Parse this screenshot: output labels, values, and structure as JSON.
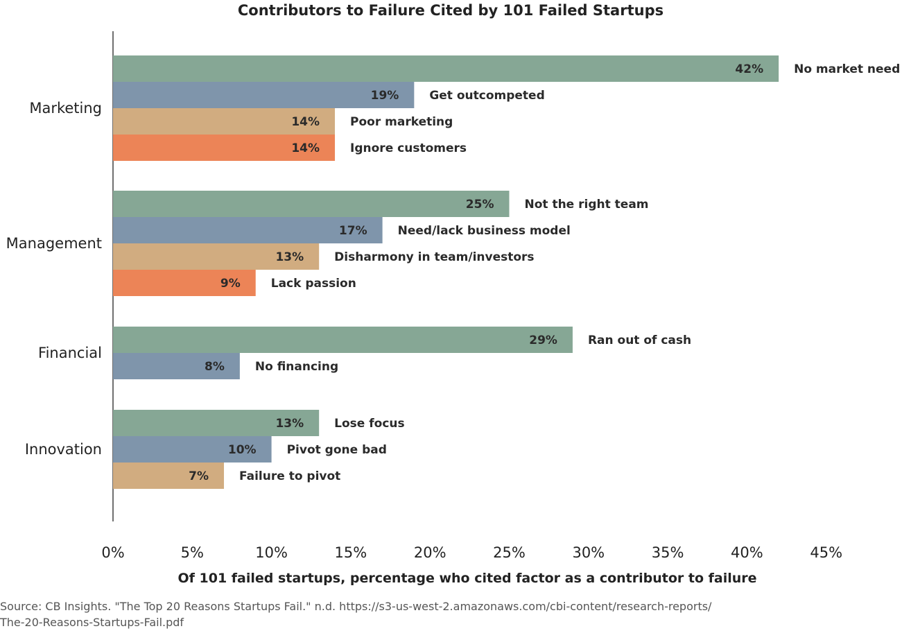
{
  "chart_data": {
    "type": "bar",
    "orientation": "horizontal",
    "title": "Contributors to Failure Cited by 101 Failed Startups",
    "xlabel": "Of 101 failed startups, percentage who cited factor as a contributor to failure",
    "ylabel": "",
    "xlim": [
      0,
      45
    ],
    "xticks": [
      "0%",
      "5%",
      "10%",
      "15%",
      "20%",
      "25%",
      "30%",
      "35%",
      "40%",
      "45%"
    ],
    "grid": false,
    "colors": [
      "#86a795",
      "#7f95ab",
      "#d1ac80",
      "#ec8457"
    ],
    "groups": [
      {
        "category": "Marketing",
        "bars": [
          {
            "label": "No market need",
            "value": 42
          },
          {
            "label": "Get outcompeted",
            "value": 19
          },
          {
            "label": "Poor marketing",
            "value": 14
          },
          {
            "label": "Ignore customers",
            "value": 14
          }
        ]
      },
      {
        "category": "Management",
        "bars": [
          {
            "label": "Not the right team",
            "value": 25
          },
          {
            "label": "Need/lack business model",
            "value": 17
          },
          {
            "label": "Disharmony in team/investors",
            "value": 13
          },
          {
            "label": "Lack passion",
            "value": 9
          }
        ]
      },
      {
        "category": "Financial",
        "bars": [
          {
            "label": "Ran out of cash",
            "value": 29
          },
          {
            "label": "No financing",
            "value": 8
          }
        ]
      },
      {
        "category": "Innovation",
        "bars": [
          {
            "label": "Lose focus",
            "value": 13
          },
          {
            "label": "Pivot gone bad",
            "value": 10
          },
          {
            "label": "Failure to pivot",
            "value": 7
          }
        ]
      }
    ]
  },
  "source": {
    "line1": "Source: CB Insights. \"The Top 20 Reasons Startups Fail.\" n.d. https://s3-us-west-2.amazonaws.com/cbi-content/research-reports/",
    "line2": "The-20-Reasons-Startups-Fail.pdf"
  }
}
